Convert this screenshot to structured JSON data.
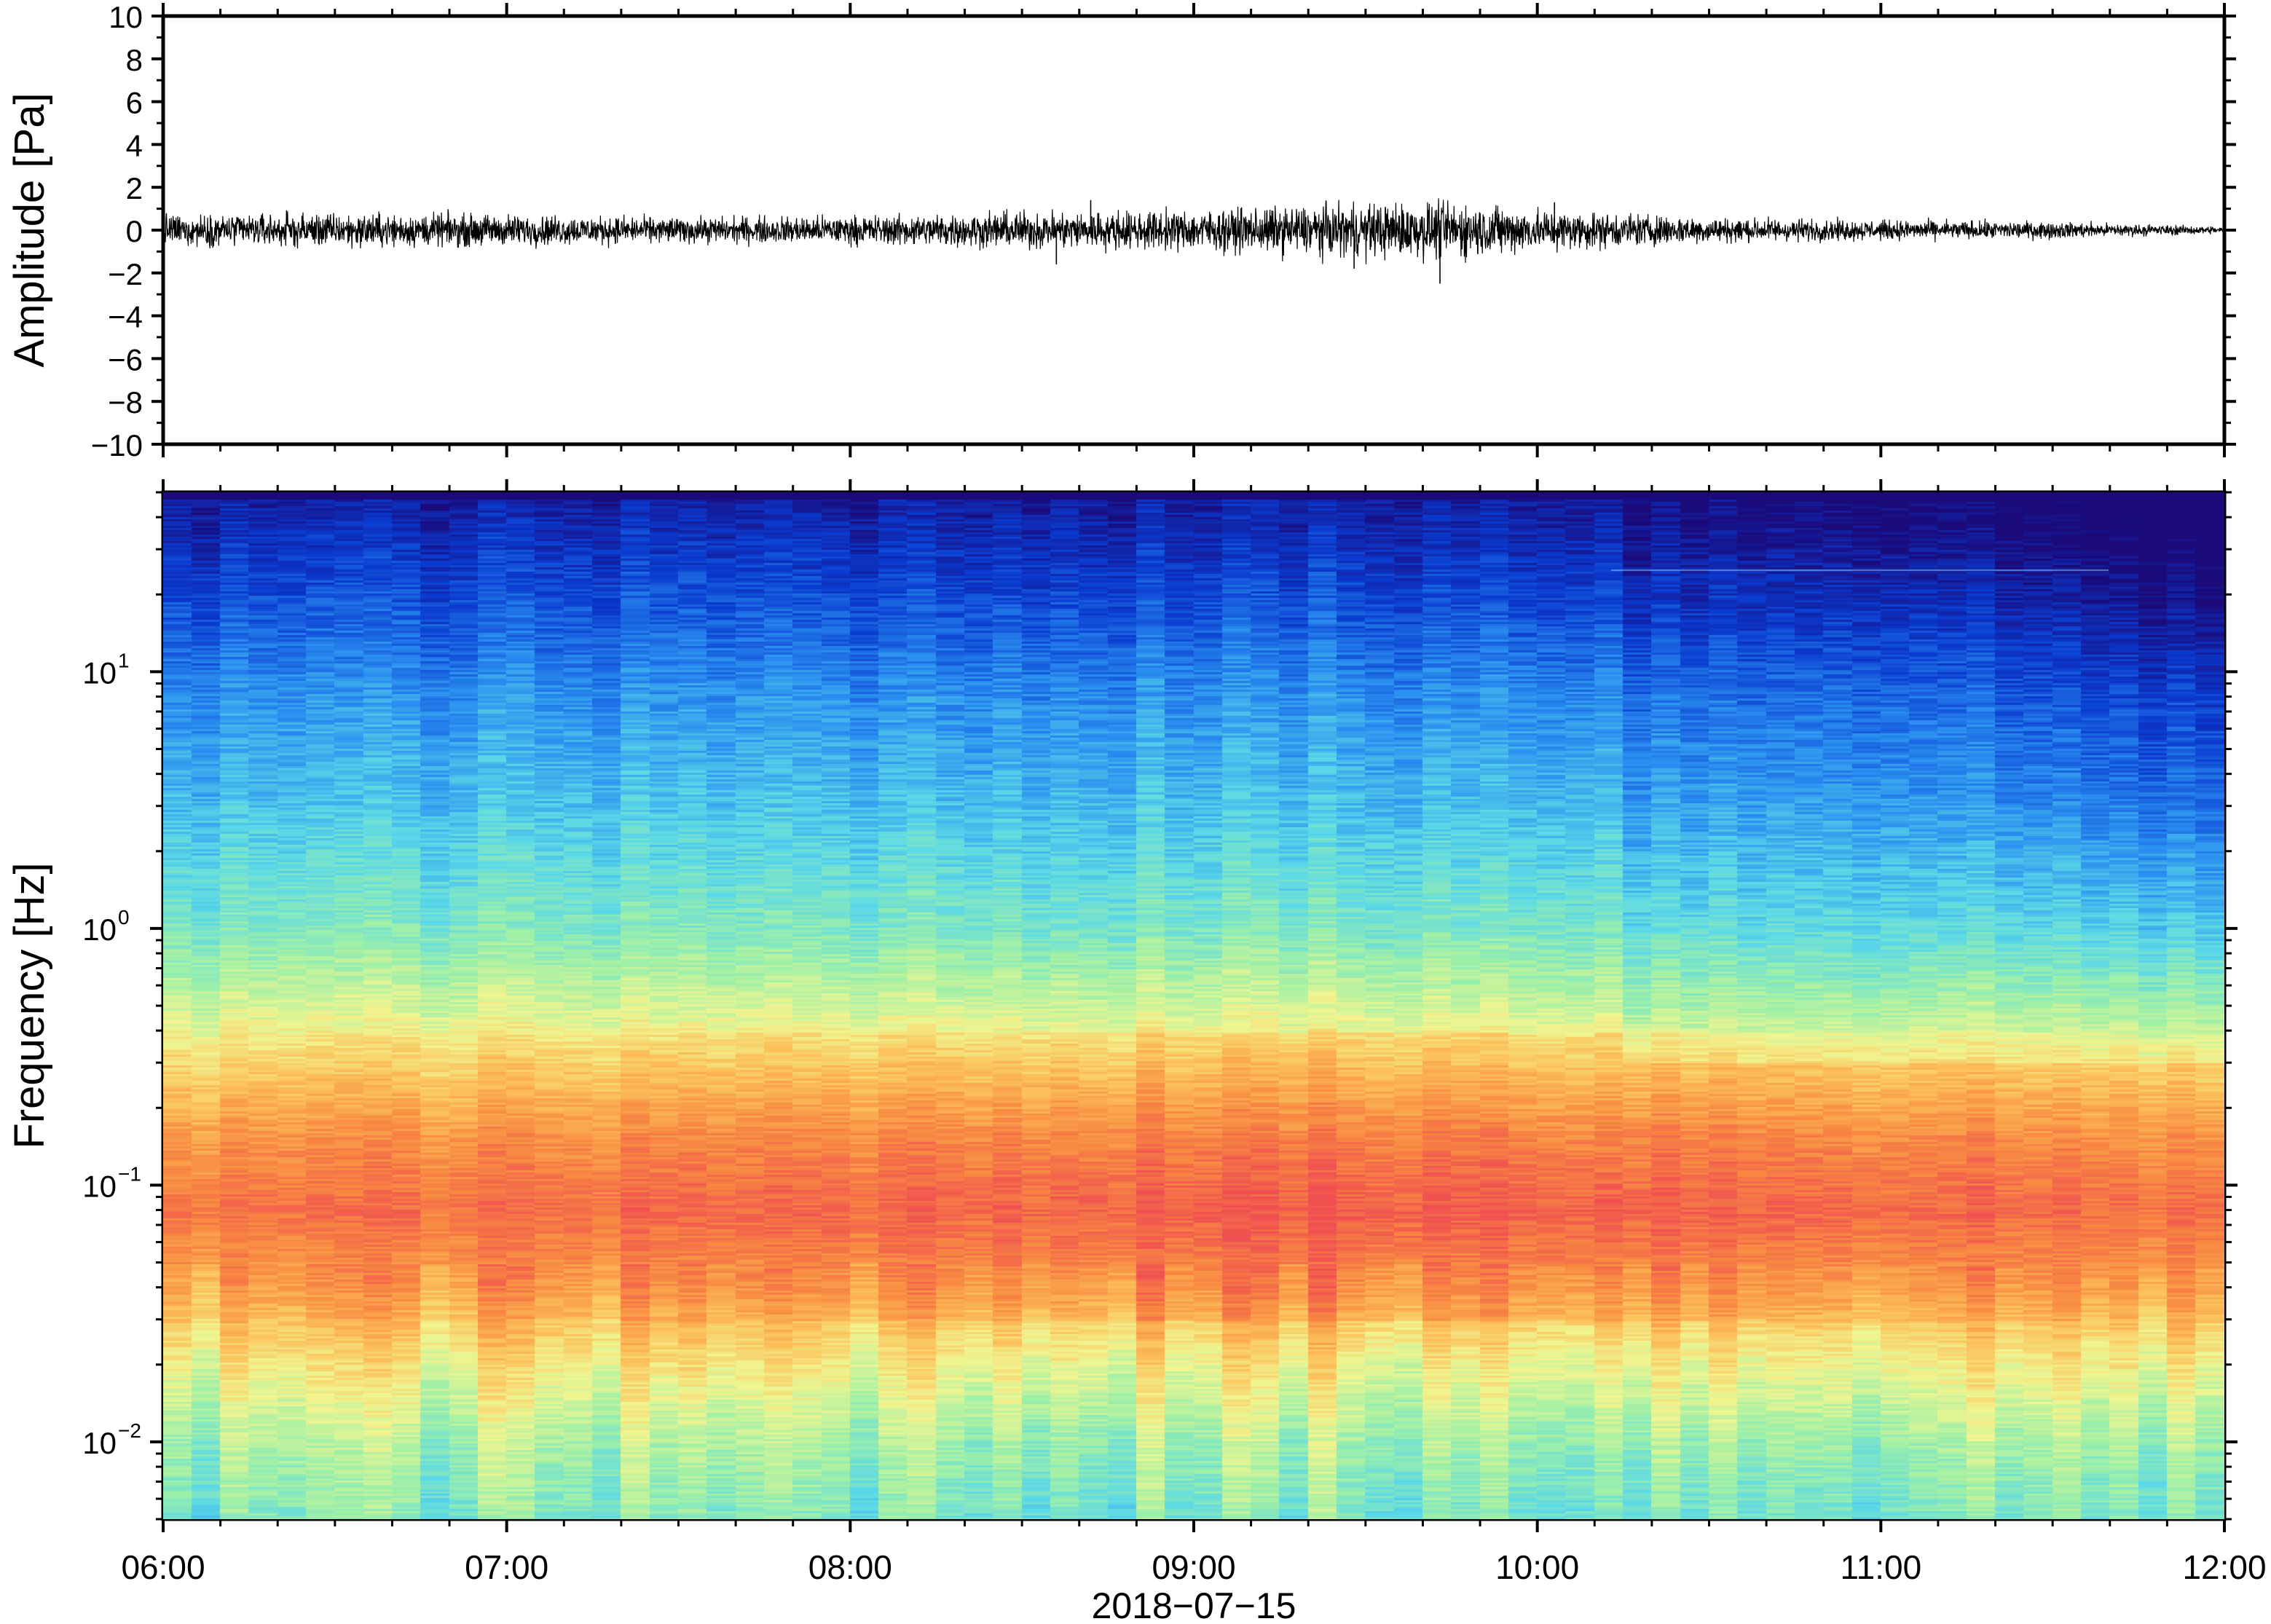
{
  "chart_data": [
    {
      "type": "line",
      "panel": "waveform",
      "ylabel": "Amplitude [Pa]",
      "ylim": [
        -10,
        10
      ],
      "yticks": [
        10,
        8,
        6,
        4,
        2,
        0,
        -2,
        -4,
        -6,
        -8,
        -10
      ],
      "ytick_labels": [
        "10",
        "8",
        "6",
        "4",
        "2",
        "0",
        "−2",
        "−4",
        "−6",
        "−8",
        "−10"
      ],
      "xlim": [
        "06:00",
        "12:00"
      ],
      "series_color": "#000000",
      "envelope": [
        {
          "time": "06:00",
          "amplitude": 0.55
        },
        {
          "time": "06:30",
          "amplitude": 0.6
        },
        {
          "time": "07:00",
          "amplitude": 0.55
        },
        {
          "time": "07:30",
          "amplitude": 0.45
        },
        {
          "time": "08:00",
          "amplitude": 0.5
        },
        {
          "time": "08:30",
          "amplitude": 0.65
        },
        {
          "time": "09:00",
          "amplitude": 0.7
        },
        {
          "time": "09:30",
          "amplitude": 0.95
        },
        {
          "time": "09:45",
          "amplitude": 1.0
        },
        {
          "time": "10:00",
          "amplitude": 0.75
        },
        {
          "time": "10:30",
          "amplitude": 0.45
        },
        {
          "time": "11:00",
          "amplitude": 0.35
        },
        {
          "time": "11:30",
          "amplitude": 0.3
        },
        {
          "time": "12:00",
          "amplitude": 0.12
        }
      ],
      "peaks": [
        {
          "time": "08:36",
          "amplitude": -1.6
        },
        {
          "time": "08:42",
          "amplitude": 1.4
        },
        {
          "time": "09:28",
          "amplitude": -1.8
        },
        {
          "time": "09:43",
          "amplitude": -2.5
        },
        {
          "time": "10:03",
          "amplitude": 1.3
        }
      ]
    },
    {
      "type": "heatmap",
      "panel": "spectrogram",
      "ylabel": "Frequency [Hz]",
      "yscale": "log",
      "ylim": [
        0.005,
        50
      ],
      "yticks": [
        0.01,
        0.1,
        1,
        10
      ],
      "ytick_base": [
        "10",
        "10",
        "10",
        "10"
      ],
      "ytick_exp": [
        "−2",
        "−1",
        "0",
        "1"
      ],
      "xlim": [
        "06:00",
        "12:00"
      ],
      "colormap": [
        "#1a0a7a",
        "#0a3bd0",
        "#2a8ef0",
        "#5ad8e8",
        "#9ef0a8",
        "#f0f590",
        "#fcc05a",
        "#f88a42",
        "#f05050"
      ],
      "levels_by_frequency": [
        {
          "frequency": 50,
          "level": 0.05
        },
        {
          "frequency": 20,
          "level": 0.15
        },
        {
          "frequency": 8,
          "level": 0.26
        },
        {
          "frequency": 3,
          "level": 0.34
        },
        {
          "frequency": 1,
          "level": 0.45
        },
        {
          "frequency": 0.5,
          "level": 0.58
        },
        {
          "frequency": 0.3,
          "level": 0.7
        },
        {
          "frequency": 0.15,
          "level": 0.85
        },
        {
          "frequency": 0.08,
          "level": 0.92
        },
        {
          "frequency": 0.04,
          "level": 0.82
        },
        {
          "frequency": 0.02,
          "level": 0.65
        },
        {
          "frequency": 0.01,
          "level": 0.52
        },
        {
          "frequency": 0.005,
          "level": 0.45
        }
      ],
      "temporal_features": [
        {
          "time": "10:13",
          "note": "high-frequency energy drops after this time"
        },
        {
          "time": "09:30",
          "note": "strongest microbarom band 0.05–0.3 Hz"
        },
        {
          "time": "11:45",
          "note": "high frequencies weakest toward end"
        }
      ]
    }
  ],
  "xaxis": {
    "tick_labels": [
      "06:00",
      "07:00",
      "08:00",
      "09:00",
      "10:00",
      "11:00",
      "12:00"
    ],
    "date_label": "2018−07−15"
  }
}
